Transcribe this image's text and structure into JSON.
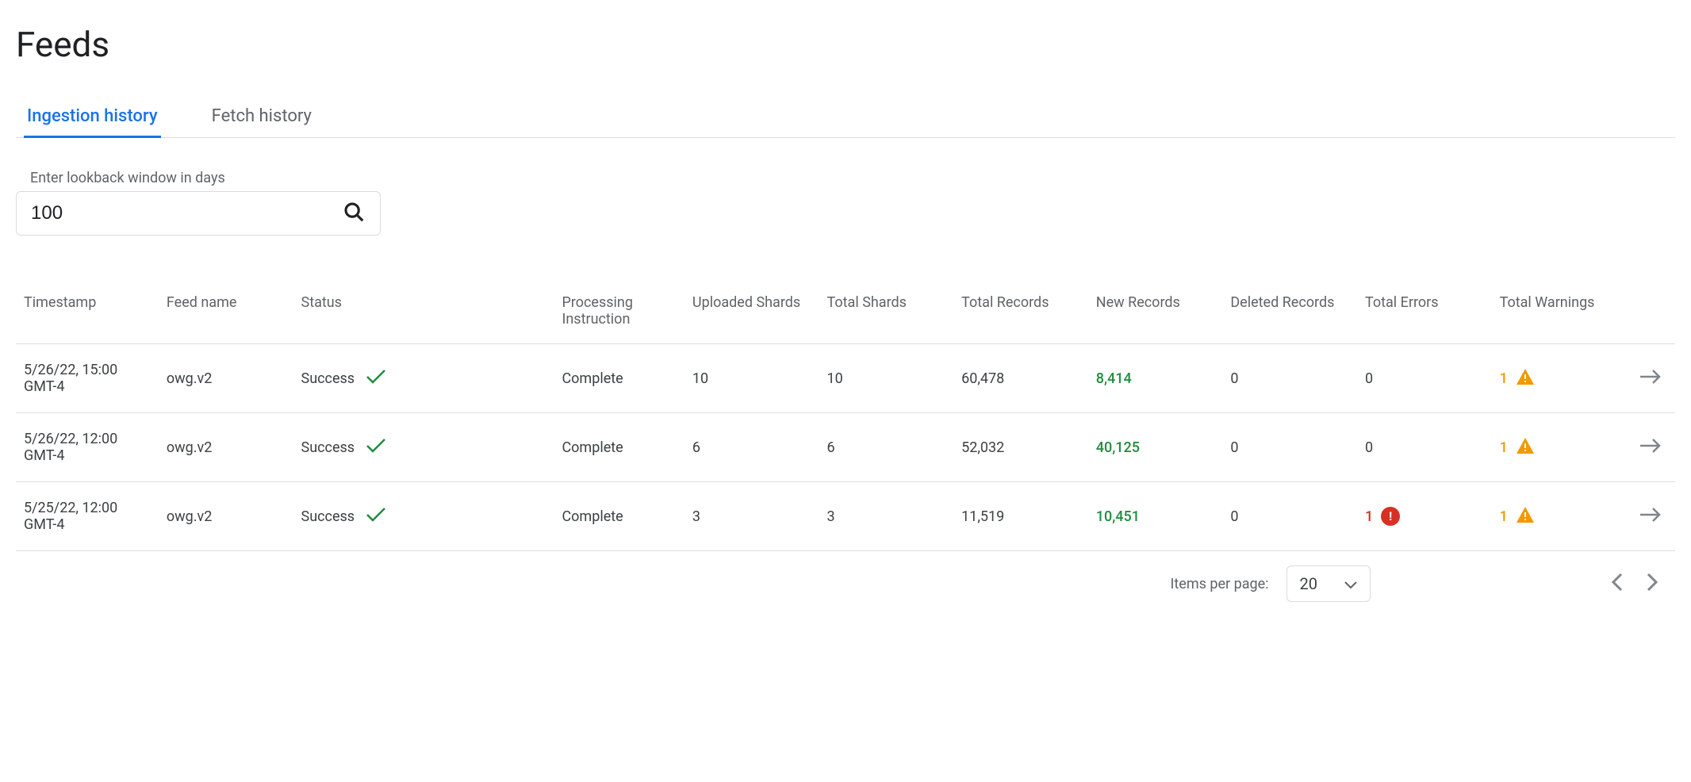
{
  "page": {
    "title": "Feeds"
  },
  "tabs": [
    {
      "label": "Ingestion history",
      "active": true
    },
    {
      "label": "Fetch history",
      "active": false
    }
  ],
  "lookback": {
    "label": "Enter lookback window in days",
    "value": "100"
  },
  "table": {
    "columns": [
      "Timestamp",
      "Feed name",
      "Status",
      "Processing Instruction",
      "Uploaded Shards",
      "Total Shards",
      "Total Records",
      "New Records",
      "Deleted Records",
      "Total Errors",
      "Total Warnings"
    ],
    "rows": [
      {
        "timestamp": "5/26/22, 15:00 GMT-4",
        "feed_name": "owg.v2",
        "status": "Success",
        "processing": "Complete",
        "uploaded_shards": "10",
        "total_shards": "10",
        "total_records": "60,478",
        "new_records": "8,414",
        "deleted_records": "0",
        "total_errors": "0",
        "has_errors": false,
        "total_warnings": "1",
        "has_warnings": true
      },
      {
        "timestamp": "5/26/22, 12:00 GMT-4",
        "feed_name": "owg.v2",
        "status": "Success",
        "processing": "Complete",
        "uploaded_shards": "6",
        "total_shards": "6",
        "total_records": "52,032",
        "new_records": "40,125",
        "deleted_records": "0",
        "total_errors": "0",
        "has_errors": false,
        "total_warnings": "1",
        "has_warnings": true
      },
      {
        "timestamp": "5/25/22, 12:00 GMT-4",
        "feed_name": "owg.v2",
        "status": "Success",
        "processing": "Complete",
        "uploaded_shards": "3",
        "total_shards": "3",
        "total_records": "11,519",
        "new_records": "10,451",
        "deleted_records": "0",
        "total_errors": "1",
        "has_errors": true,
        "total_warnings": "1",
        "has_warnings": true
      }
    ]
  },
  "paginator": {
    "items_per_page_label": "Items per page:",
    "items_per_page_value": "20"
  },
  "colors": {
    "primary": "#1a73e8",
    "success": "#1e8e3e",
    "warning": "#f29900",
    "error": "#d93025",
    "text": "#202124",
    "text_secondary": "#5f6368",
    "border": "#dadce0",
    "icon_grey": "#80868b",
    "background": "#ffffff"
  }
}
